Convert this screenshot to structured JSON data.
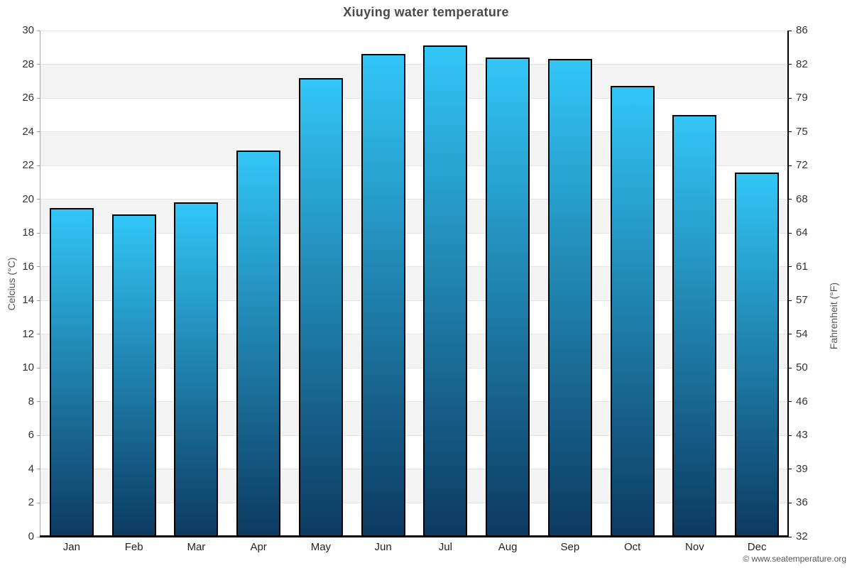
{
  "title": "Xiuying water temperature",
  "watermark": "© www.seatemperature.org",
  "chart_data": {
    "type": "bar",
    "title": "Xiuying water temperature",
    "categories": [
      "Jan",
      "Feb",
      "Mar",
      "Apr",
      "May",
      "Jun",
      "Jul",
      "Aug",
      "Sep",
      "Oct",
      "Nov",
      "Dec"
    ],
    "values": [
      19.5,
      19.1,
      19.8,
      22.9,
      27.2,
      28.6,
      29.1,
      28.4,
      28.3,
      26.7,
      25.0,
      21.6
    ],
    "series_name": "Water temperature (°C)",
    "xlabel": "",
    "ylabel_left": "Celcius (°C)",
    "ylabel_right": "Fahrenheit (°F)",
    "ylim_celsius": [
      0,
      30
    ],
    "yticks_celsius": [
      0,
      2,
      4,
      6,
      8,
      10,
      12,
      14,
      16,
      18,
      20,
      22,
      24,
      26,
      28,
      30
    ],
    "yticks_fahrenheit": [
      "32",
      "36",
      "39",
      "43",
      "46",
      "50",
      "54",
      "57",
      "61",
      "64",
      "68",
      "72",
      "75",
      "79",
      "82",
      "86"
    ],
    "legend": "none",
    "grid": "horizontal-gridlines-with-alternating-bands",
    "colors": {
      "bar_gradient_top": "#32c6f7",
      "bar_gradient_bottom": "#0c3a61",
      "bar_border": "#000000",
      "band_gray": "#f3f3f3",
      "band_white": "#ffffff",
      "gridline": "#e4e4e4",
      "axis_left": "#a6a6a6",
      "axis_right": "#000000",
      "axis_bottom": "#000000",
      "title_text": "#4a4a4a",
      "tick_text": "#333333",
      "watermark_text": "#555555"
    }
  }
}
